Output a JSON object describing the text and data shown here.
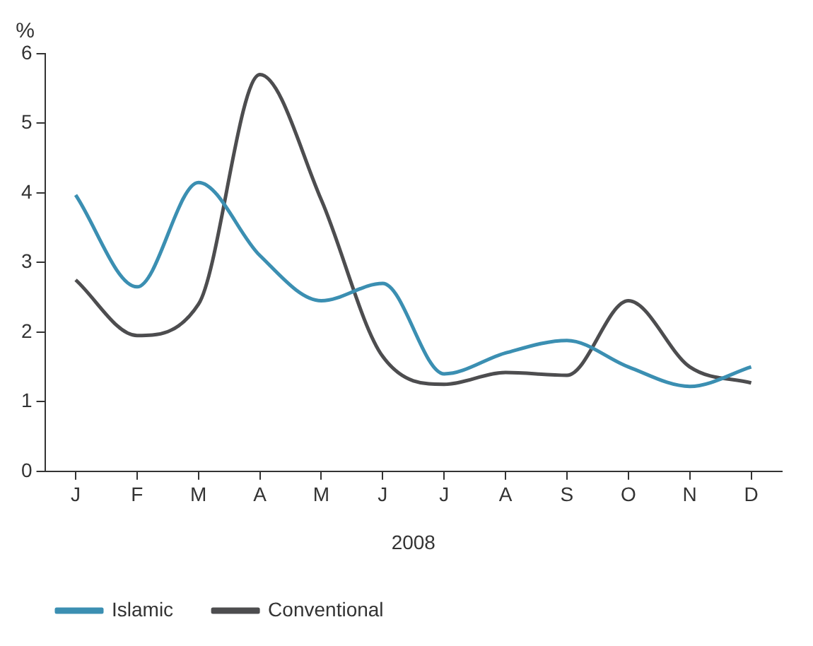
{
  "chart_data": {
    "type": "line",
    "xlabel": "2008",
    "ylabel": "%",
    "categories": [
      "J",
      "F",
      "M",
      "A",
      "M",
      "J",
      "J",
      "A",
      "S",
      "O",
      "N",
      "D"
    ],
    "series": [
      {
        "name": "Islamic",
        "color": "#3b8fb2",
        "values": [
          3.97,
          2.65,
          4.15,
          3.1,
          2.45,
          2.7,
          1.4,
          1.7,
          1.88,
          1.5,
          1.22,
          1.5
        ]
      },
      {
        "name": "Conventional",
        "color": "#4d4d4f",
        "values": [
          2.75,
          1.95,
          2.4,
          5.7,
          3.9,
          1.65,
          1.25,
          1.42,
          1.38,
          2.45,
          1.5,
          1.27
        ]
      }
    ],
    "ylim": [
      0,
      6
    ],
    "yticks": [
      0,
      1,
      2,
      3,
      4,
      5,
      6
    ],
    "grid": false,
    "legend": "bottom left",
    "marker": "none",
    "line_style": "solid"
  }
}
